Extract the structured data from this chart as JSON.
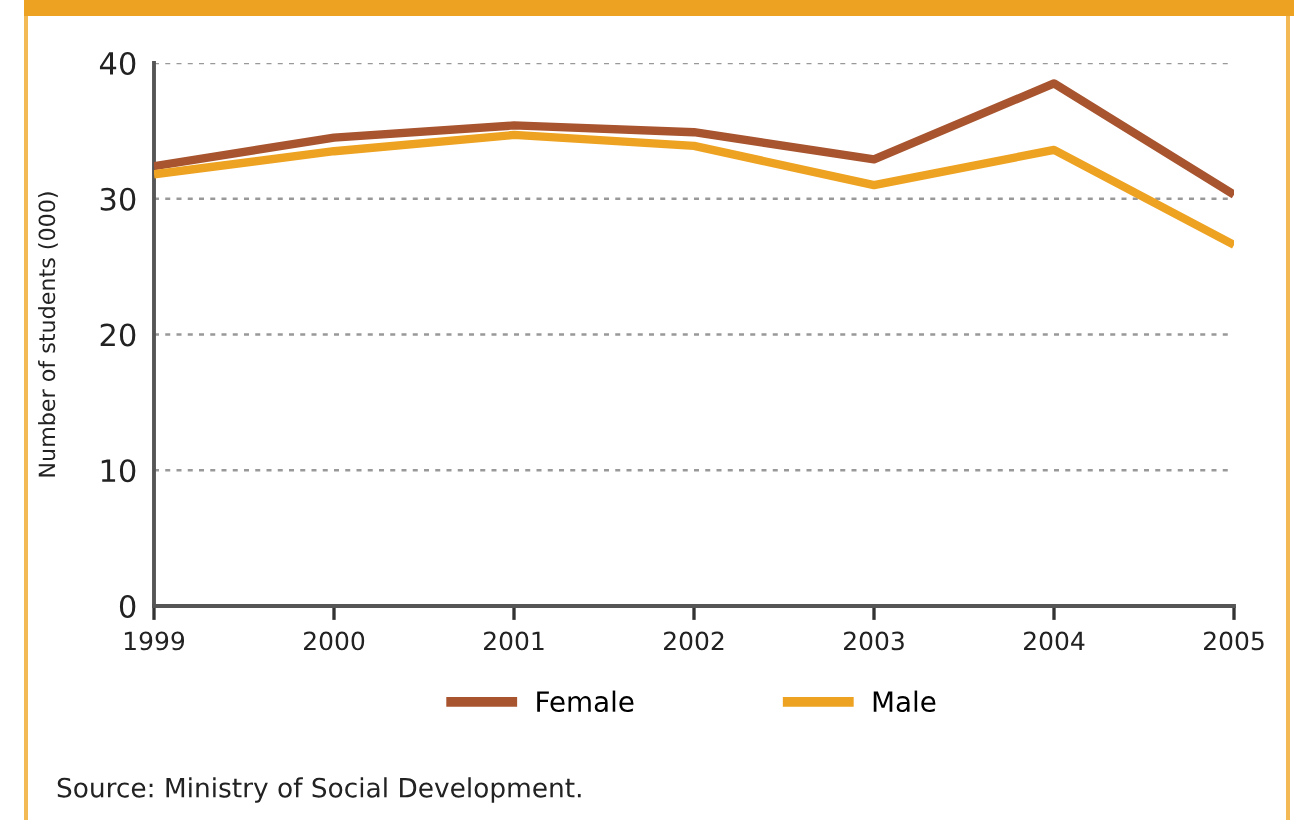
{
  "chart_data": {
    "type": "line",
    "x": [
      1999,
      2000,
      2001,
      2002,
      2003,
      2004,
      2005
    ],
    "series": [
      {
        "name": "Female",
        "color": "#a8542f",
        "values": [
          32.4,
          34.5,
          35.4,
          34.9,
          32.9,
          38.5,
          30.3
        ]
      },
      {
        "name": "Male",
        "color": "#eea221",
        "values": [
          31.8,
          33.5,
          34.7,
          33.9,
          31.0,
          33.6,
          26.6
        ]
      }
    ],
    "ylabel": "Number of students (000)",
    "xlim": [
      1999,
      2005
    ],
    "xticks": [
      1999,
      2000,
      2001,
      2002,
      2003,
      2004,
      2005
    ],
    "ylim": [
      0,
      40
    ],
    "yticks": [
      0,
      10,
      20,
      30,
      40
    ],
    "grid": "y",
    "legend": "bottom",
    "annotations": [
      "Source: Ministry of Social Development."
    ]
  }
}
